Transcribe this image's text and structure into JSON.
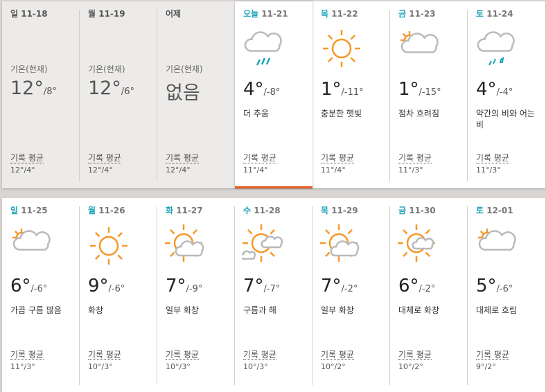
{
  "current_label": "기온(현재)",
  "avg_label": "기록 평균",
  "colors": {
    "accent_day": "#1aa3b8",
    "today_bar": "#e8581c",
    "sun": "#f7982a",
    "cloud": "#b9babb",
    "rain": "#1aa3b8"
  },
  "rows": [
    [
      {
        "day": "일",
        "date": "11-18",
        "past": true,
        "hi": "12°",
        "lo": "/8°",
        "avg": "12°/4°"
      },
      {
        "day": "월",
        "date": "11-19",
        "past": true,
        "hi": "12°",
        "lo": "/6°",
        "avg": "12°/4°"
      },
      {
        "day": "어제",
        "date": "",
        "past": true,
        "hi": "없음",
        "lo": "",
        "avg": "12°/4°"
      },
      {
        "day": "오늘",
        "date": "11-21",
        "today": true,
        "icon": "rain",
        "hi": "4°",
        "lo": "/-8°",
        "desc": "더 추움",
        "avg": "11°/4°"
      },
      {
        "day": "목",
        "date": "11-22",
        "icon": "sun",
        "hi": "1°",
        "lo": "/-11°",
        "desc": "충분한 햇빛",
        "avg": "11°/4°"
      },
      {
        "day": "금",
        "date": "11-23",
        "icon": "cloud-sun-peek",
        "hi": "1°",
        "lo": "/-15°",
        "desc": "점차 흐려짐",
        "avg": "11°/3°"
      },
      {
        "day": "토",
        "date": "11-24",
        "icon": "freezing-rain",
        "hi": "4°",
        "lo": "/-4°",
        "desc": "약간의 비와 어는 비",
        "avg": "11°/3°"
      }
    ],
    [
      {
        "day": "일",
        "date": "11-25",
        "icon": "cloud-sun-peek",
        "hi": "6°",
        "lo": "/-6°",
        "desc": "가끔 구름 많음",
        "avg": "11°/3°"
      },
      {
        "day": "월",
        "date": "11-26",
        "icon": "sun",
        "hi": "9°",
        "lo": "/-6°",
        "desc": "화창",
        "avg": "10°/3°"
      },
      {
        "day": "화",
        "date": "11-27",
        "icon": "sun-cloud",
        "hi": "7°",
        "lo": "/-9°",
        "desc": "일부 화창",
        "avg": "10°/3°"
      },
      {
        "day": "수",
        "date": "11-28",
        "icon": "sun-two-clouds",
        "hi": "7°",
        "lo": "/-7°",
        "desc": "구름과 해",
        "avg": "10°/3°"
      },
      {
        "day": "목",
        "date": "11-29",
        "icon": "sun-cloud",
        "hi": "7°",
        "lo": "/-2°",
        "desc": "일부 화창",
        "avg": "10°/2°"
      },
      {
        "day": "금",
        "date": "11-30",
        "icon": "sun-small-cloud",
        "hi": "6°",
        "lo": "/-2°",
        "desc": "대체로 화창",
        "avg": "10°/2°"
      },
      {
        "day": "토",
        "date": "12-01",
        "icon": "cloud-sun-peek",
        "hi": "5°",
        "lo": "/-6°",
        "desc": "대체로 흐림",
        "avg": "9°/2°"
      }
    ]
  ]
}
